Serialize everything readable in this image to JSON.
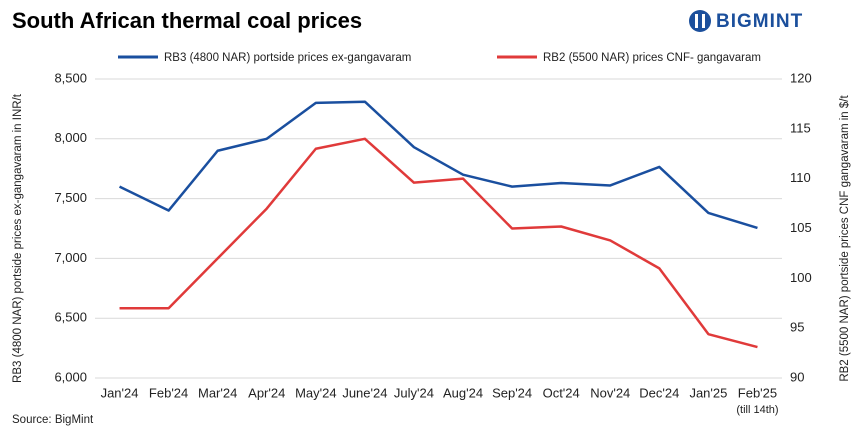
{
  "logo": "BIGMINT",
  "chart_data": {
    "type": "line",
    "title": "South African thermal coal prices",
    "source": "Source: BigMint",
    "categories": [
      "Jan'24",
      "Feb'24",
      "Mar'24",
      "Apr'24",
      "May'24",
      "June'24",
      "July'24",
      "Aug'24",
      "Sep'24",
      "Oct'24",
      "Nov'24",
      "Dec'24",
      "Jan'25",
      "Feb'25"
    ],
    "annotations": [
      {
        "category": "Feb'25",
        "text": "(till 14th)"
      }
    ],
    "y_label": "RB3 (4800 NAR) portside prices ex-gangavaram in INR/t",
    "y2_label": "RB2 (5500 NAR) portside prices CNF  gangavaram in $/t",
    "ylim": [
      6000,
      8500
    ],
    "yticks": [
      {
        "value": 6000,
        "label": "6,000"
      },
      {
        "value": 6500,
        "label": "6,500"
      },
      {
        "value": 7000,
        "label": "7,000"
      },
      {
        "value": 7500,
        "label": "7,500"
      },
      {
        "value": 8000,
        "label": "8,000"
      },
      {
        "value": 8500,
        "label": "8,500"
      }
    ],
    "y2lim": [
      90,
      120
    ],
    "y2ticks": [
      90,
      95,
      100,
      105,
      110,
      115,
      120
    ],
    "grid": true,
    "series": [
      {
        "name": "RB3 (4800 NAR) portside prices ex-gangavaram",
        "color": "#1a4f9f",
        "axis": "y",
        "values": [
          7600,
          7400,
          7900,
          8000,
          8300,
          8310,
          7930,
          7700,
          7600,
          7630,
          7610,
          7765,
          7380,
          7255
        ]
      },
      {
        "name": "RB2 (5500 NAR) prices CNF- gangavaram",
        "color": "#e03a3a",
        "axis": "y2",
        "values": [
          97,
          97,
          102,
          107,
          113,
          114,
          109.6,
          110,
          105,
          105.2,
          103.8,
          101,
          94.4,
          93.1
        ]
      }
    ]
  }
}
